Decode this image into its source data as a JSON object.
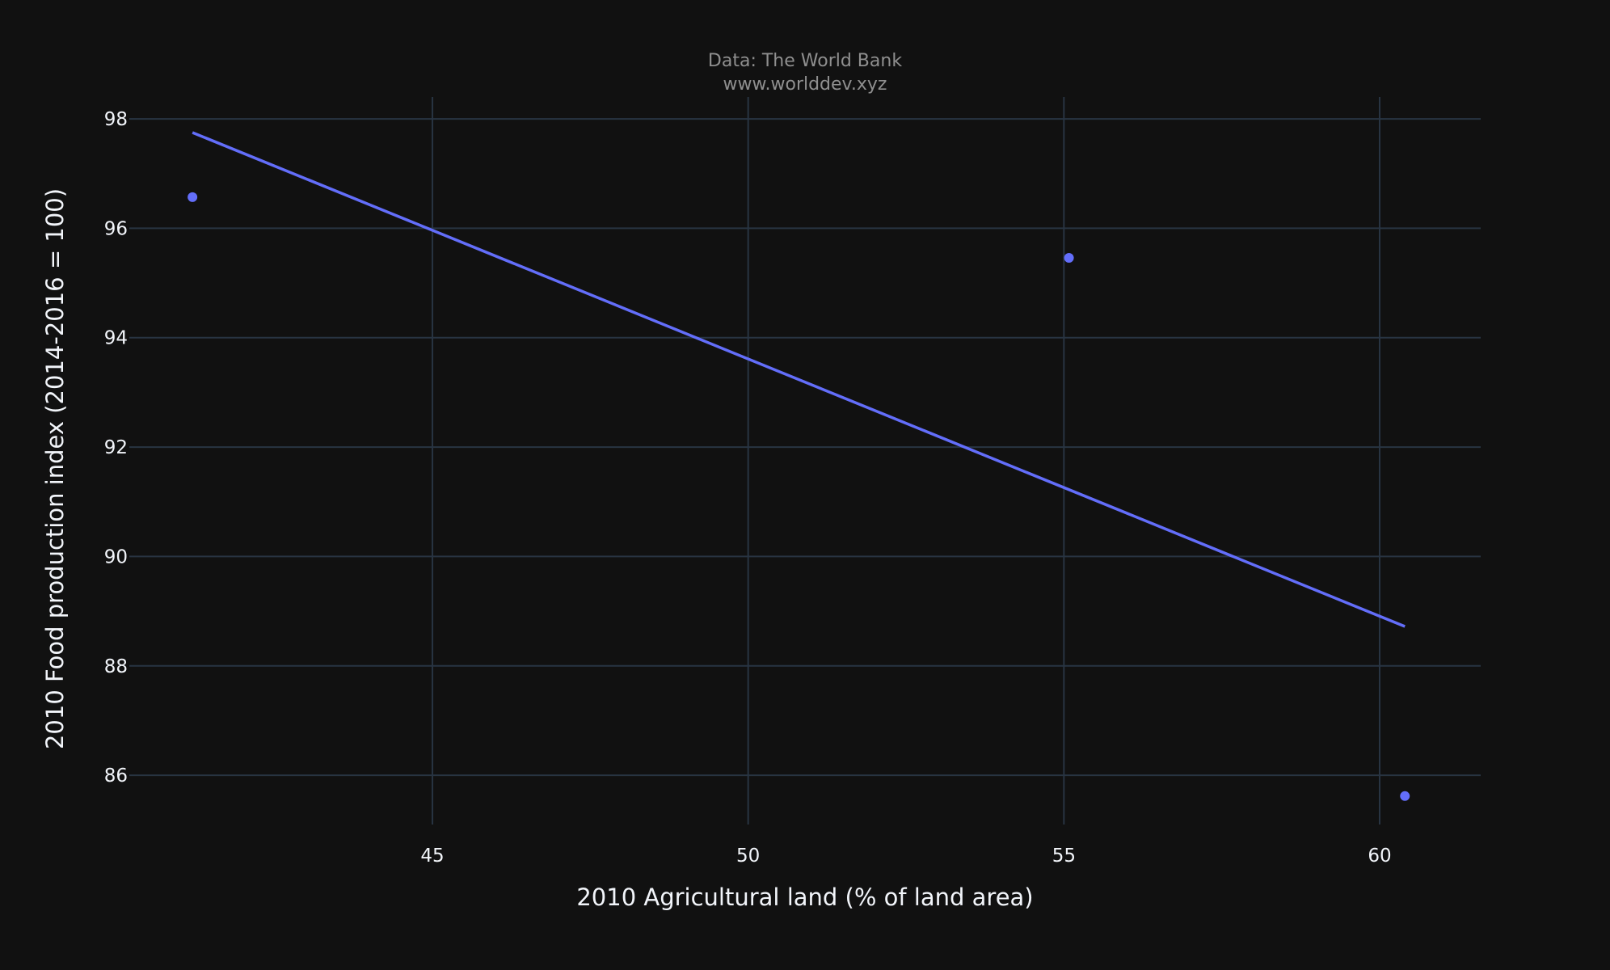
{
  "source": {
    "line1": "Data: The World Bank",
    "line2": "www.worlddev.xyz"
  },
  "colors": {
    "background": "#111111",
    "grid": "#283442",
    "series": "#636efa",
    "text": "#f2f5fa",
    "source_text": "#8f8f8f"
  },
  "chart_data": {
    "type": "scatter",
    "title": "",
    "xlabel": "2010 Agricultural land (% of land area)",
    "ylabel": "2010 Food production index (2014-2016 = 100)",
    "xlim": [
      40.2,
      61.6
    ],
    "ylim": [
      85.1,
      98.4
    ],
    "x_ticks": [
      45,
      50,
      55,
      60
    ],
    "y_ticks": [
      86,
      88,
      90,
      92,
      94,
      96,
      98
    ],
    "grid": true,
    "points": [
      {
        "x": 41.2,
        "y": 96.57
      },
      {
        "x": 55.08,
        "y": 95.46
      },
      {
        "x": 60.4,
        "y": 85.62
      }
    ],
    "trendline": [
      {
        "x": 41.2,
        "y": 97.75
      },
      {
        "x": 60.4,
        "y": 88.72
      }
    ]
  }
}
